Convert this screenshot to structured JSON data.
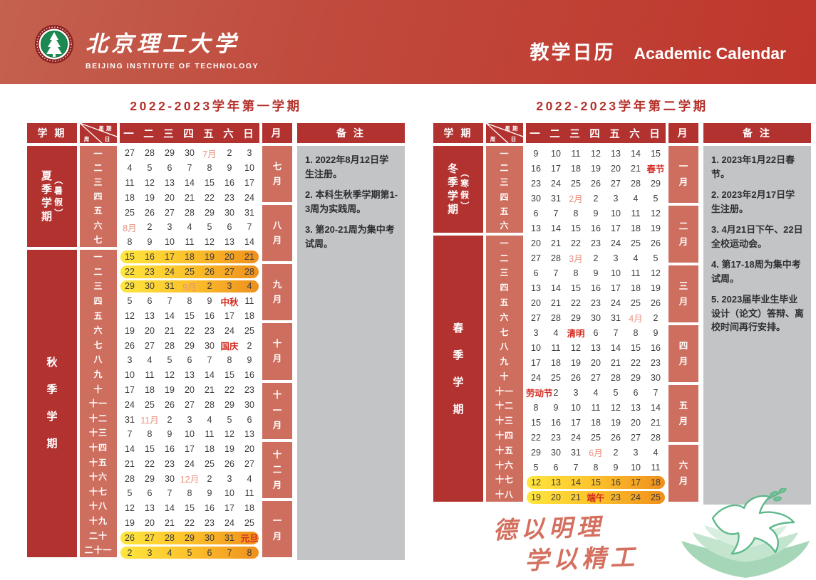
{
  "banner": {
    "university_zh": "北京理工大学",
    "university_en": "BEIJING INSTITUTE OF TECHNOLOGY",
    "page_title_zh": "教学日历",
    "page_title_en": "Academic Calendar"
  },
  "table_labels": {
    "semester": "学 期",
    "weekday": "星期",
    "day": "日",
    "week": "周",
    "month": "月",
    "remarks": "备 注"
  },
  "weekday_headers": [
    "一",
    "二",
    "三",
    "四",
    "五",
    "六",
    "日"
  ],
  "colors": {
    "banner_gradient_start": "#c4614f",
    "banner_gradient_end": "#bf362c",
    "header_cell_red": "#b23230",
    "accent_salmon": "#cd6e5e",
    "title_red": "#b5312b",
    "holiday_red": "#d22b20",
    "inline_month_salmon": "#e8907e",
    "highlight_yellow": "#ffe63e",
    "highlight_orange": "#ef8f1d",
    "remarks_gray": "#c2c4c6",
    "dove_green": "#5eb88a"
  },
  "calendars": [
    {
      "title": "2022-2023学年第一学期",
      "sections": [
        {
          "label_main": "夏季学期",
          "label_paren": "（暑假）",
          "weeks": [
            {
              "week": "一",
              "days": [
                "27",
                "28",
                "29",
                "30",
                "7月",
                "2",
                "3"
              ],
              "highlight": false
            },
            {
              "week": "二",
              "days": [
                "4",
                "5",
                "6",
                "7",
                "8",
                "9",
                "10"
              ],
              "highlight": false
            },
            {
              "week": "三",
              "days": [
                "11",
                "12",
                "13",
                "14",
                "15",
                "16",
                "17"
              ],
              "highlight": false
            },
            {
              "week": "四",
              "days": [
                "18",
                "19",
                "20",
                "21",
                "22",
                "23",
                "24"
              ],
              "highlight": false
            },
            {
              "week": "五",
              "days": [
                "25",
                "26",
                "27",
                "28",
                "29",
                "30",
                "31"
              ],
              "highlight": false
            },
            {
              "week": "六",
              "days": [
                "8月",
                "2",
                "3",
                "4",
                "5",
                "6",
                "7"
              ],
              "highlight": false
            },
            {
              "week": "七",
              "days": [
                "8",
                "9",
                "10",
                "11",
                "12",
                "13",
                "14"
              ],
              "highlight": false
            }
          ]
        },
        {
          "label_main": "秋季学期",
          "label_paren": "",
          "weeks": [
            {
              "week": "一",
              "days": [
                "15",
                "16",
                "17",
                "18",
                "19",
                "20",
                "21"
              ],
              "highlight": true
            },
            {
              "week": "二",
              "days": [
                "22",
                "23",
                "24",
                "25",
                "26",
                "27",
                "28"
              ],
              "highlight": true
            },
            {
              "week": "三",
              "days": [
                "29",
                "30",
                "31",
                "9月",
                "2",
                "3",
                "4"
              ],
              "highlight": true
            },
            {
              "week": "四",
              "days": [
                "5",
                "6",
                "7",
                "8",
                "9",
                "中秋",
                "11"
              ],
              "highlight": false
            },
            {
              "week": "五",
              "days": [
                "12",
                "13",
                "14",
                "15",
                "16",
                "17",
                "18"
              ],
              "highlight": false
            },
            {
              "week": "六",
              "days": [
                "19",
                "20",
                "21",
                "22",
                "23",
                "24",
                "25"
              ],
              "highlight": false
            },
            {
              "week": "七",
              "days": [
                "26",
                "27",
                "28",
                "29",
                "30",
                "国庆",
                "2"
              ],
              "highlight": false
            },
            {
              "week": "八",
              "days": [
                "3",
                "4",
                "5",
                "6",
                "7",
                "8",
                "9"
              ],
              "highlight": false
            },
            {
              "week": "九",
              "days": [
                "10",
                "11",
                "12",
                "13",
                "14",
                "15",
                "16"
              ],
              "highlight": false
            },
            {
              "week": "十",
              "days": [
                "17",
                "18",
                "19",
                "20",
                "21",
                "22",
                "23"
              ],
              "highlight": false
            },
            {
              "week": "十一",
              "days": [
                "24",
                "25",
                "26",
                "27",
                "28",
                "29",
                "30"
              ],
              "highlight": false
            },
            {
              "week": "十二",
              "days": [
                "31",
                "11月",
                "2",
                "3",
                "4",
                "5",
                "6"
              ],
              "highlight": false
            },
            {
              "week": "十三",
              "days": [
                "7",
                "8",
                "9",
                "10",
                "11",
                "12",
                "13"
              ],
              "highlight": false
            },
            {
              "week": "十四",
              "days": [
                "14",
                "15",
                "16",
                "17",
                "18",
                "19",
                "20"
              ],
              "highlight": false
            },
            {
              "week": "十五",
              "days": [
                "21",
                "22",
                "23",
                "24",
                "25",
                "26",
                "27"
              ],
              "highlight": false
            },
            {
              "week": "十六",
              "days": [
                "28",
                "29",
                "30",
                "12月",
                "2",
                "3",
                "4"
              ],
              "highlight": false
            },
            {
              "week": "十七",
              "days": [
                "5",
                "6",
                "7",
                "8",
                "9",
                "10",
                "11"
              ],
              "highlight": false
            },
            {
              "week": "十八",
              "days": [
                "12",
                "13",
                "14",
                "15",
                "16",
                "17",
                "18"
              ],
              "highlight": false
            },
            {
              "week": "十九",
              "days": [
                "19",
                "20",
                "21",
                "22",
                "23",
                "24",
                "25"
              ],
              "highlight": false
            },
            {
              "week": "二十",
              "days": [
                "26",
                "27",
                "28",
                "29",
                "30",
                "31",
                "元旦"
              ],
              "highlight": true
            },
            {
              "week": "二十一",
              "days": [
                "2",
                "3",
                "4",
                "5",
                "6",
                "7",
                "8"
              ],
              "highlight": true
            }
          ]
        }
      ],
      "months": [
        "七月",
        "八月",
        "九月",
        "十月",
        "十一月",
        "十二月",
        "一月"
      ],
      "remarks": [
        "1. 2022年8月12日学生注册。",
        "2. 本科生秋季学期第1-3周为实践周。",
        "3. 第20-21周为集中考试周。"
      ]
    },
    {
      "title": "2022-2023学年第二学期",
      "sections": [
        {
          "label_main": "冬季学期",
          "label_paren": "（寒假）",
          "weeks": [
            {
              "week": "一",
              "days": [
                "9",
                "10",
                "11",
                "12",
                "13",
                "14",
                "15"
              ],
              "highlight": false
            },
            {
              "week": "二",
              "days": [
                "16",
                "17",
                "18",
                "19",
                "20",
                "21",
                "春节"
              ],
              "highlight": false
            },
            {
              "week": "三",
              "days": [
                "23",
                "24",
                "25",
                "26",
                "27",
                "28",
                "29"
              ],
              "highlight": false
            },
            {
              "week": "四",
              "days": [
                "30",
                "31",
                "2月",
                "2",
                "3",
                "4",
                "5"
              ],
              "highlight": false
            },
            {
              "week": "五",
              "days": [
                "6",
                "7",
                "8",
                "9",
                "10",
                "11",
                "12"
              ],
              "highlight": false
            },
            {
              "week": "六",
              "days": [
                "13",
                "14",
                "15",
                "16",
                "17",
                "18",
                "19"
              ],
              "highlight": false
            }
          ]
        },
        {
          "label_main": "春季学期",
          "label_paren": "",
          "weeks": [
            {
              "week": "一",
              "days": [
                "20",
                "21",
                "22",
                "23",
                "24",
                "25",
                "26"
              ],
              "highlight": false
            },
            {
              "week": "二",
              "days": [
                "27",
                "28",
                "3月",
                "2",
                "3",
                "4",
                "5"
              ],
              "highlight": false
            },
            {
              "week": "三",
              "days": [
                "6",
                "7",
                "8",
                "9",
                "10",
                "11",
                "12"
              ],
              "highlight": false
            },
            {
              "week": "四",
              "days": [
                "13",
                "14",
                "15",
                "16",
                "17",
                "18",
                "19"
              ],
              "highlight": false
            },
            {
              "week": "五",
              "days": [
                "20",
                "21",
                "22",
                "23",
                "24",
                "25",
                "26"
              ],
              "highlight": false
            },
            {
              "week": "六",
              "days": [
                "27",
                "28",
                "29",
                "30",
                "31",
                "4月",
                "2"
              ],
              "highlight": false
            },
            {
              "week": "七",
              "days": [
                "3",
                "4",
                "清明",
                "6",
                "7",
                "8",
                "9"
              ],
              "highlight": false
            },
            {
              "week": "八",
              "days": [
                "10",
                "11",
                "12",
                "13",
                "14",
                "15",
                "16"
              ],
              "highlight": false
            },
            {
              "week": "九",
              "days": [
                "17",
                "18",
                "19",
                "20",
                "21",
                "22",
                "23"
              ],
              "highlight": false
            },
            {
              "week": "十",
              "days": [
                "24",
                "25",
                "26",
                "27",
                "28",
                "29",
                "30"
              ],
              "highlight": false
            },
            {
              "week": "十一",
              "days": [
                "劳动节",
                "2",
                "3",
                "4",
                "5",
                "6",
                "7"
              ],
              "highlight": false
            },
            {
              "week": "十二",
              "days": [
                "8",
                "9",
                "10",
                "11",
                "12",
                "13",
                "14"
              ],
              "highlight": false
            },
            {
              "week": "十三",
              "days": [
                "15",
                "16",
                "17",
                "18",
                "19",
                "20",
                "21"
              ],
              "highlight": false
            },
            {
              "week": "十四",
              "days": [
                "22",
                "23",
                "24",
                "25",
                "26",
                "27",
                "28"
              ],
              "highlight": false
            },
            {
              "week": "十五",
              "days": [
                "29",
                "30",
                "31",
                "6月",
                "2",
                "3",
                "4"
              ],
              "highlight": false
            },
            {
              "week": "十六",
              "days": [
                "5",
                "6",
                "7",
                "8",
                "9",
                "10",
                "11"
              ],
              "highlight": false
            },
            {
              "week": "十七",
              "days": [
                "12",
                "13",
                "14",
                "15",
                "16",
                "17",
                "18"
              ],
              "highlight": true
            },
            {
              "week": "十八",
              "days": [
                "19",
                "20",
                "21",
                "端午",
                "23",
                "24",
                "25"
              ],
              "highlight": true
            }
          ]
        }
      ],
      "months": [
        "一月",
        "二月",
        "三月",
        "四月",
        "五月",
        "六月"
      ],
      "remarks": [
        "1. 2023年1月22日春节。",
        "2. 2023年2月17日学生注册。",
        "3. 4月21日下午、22日全校运动会。",
        "4. 第17-18周为集中考试周。",
        "5. 2023届毕业生毕业设计（论文）答辩、离校时间再行安排。"
      ]
    }
  ],
  "footer": {
    "motto_line1": "德以明理",
    "motto_line2": "学以精工"
  }
}
